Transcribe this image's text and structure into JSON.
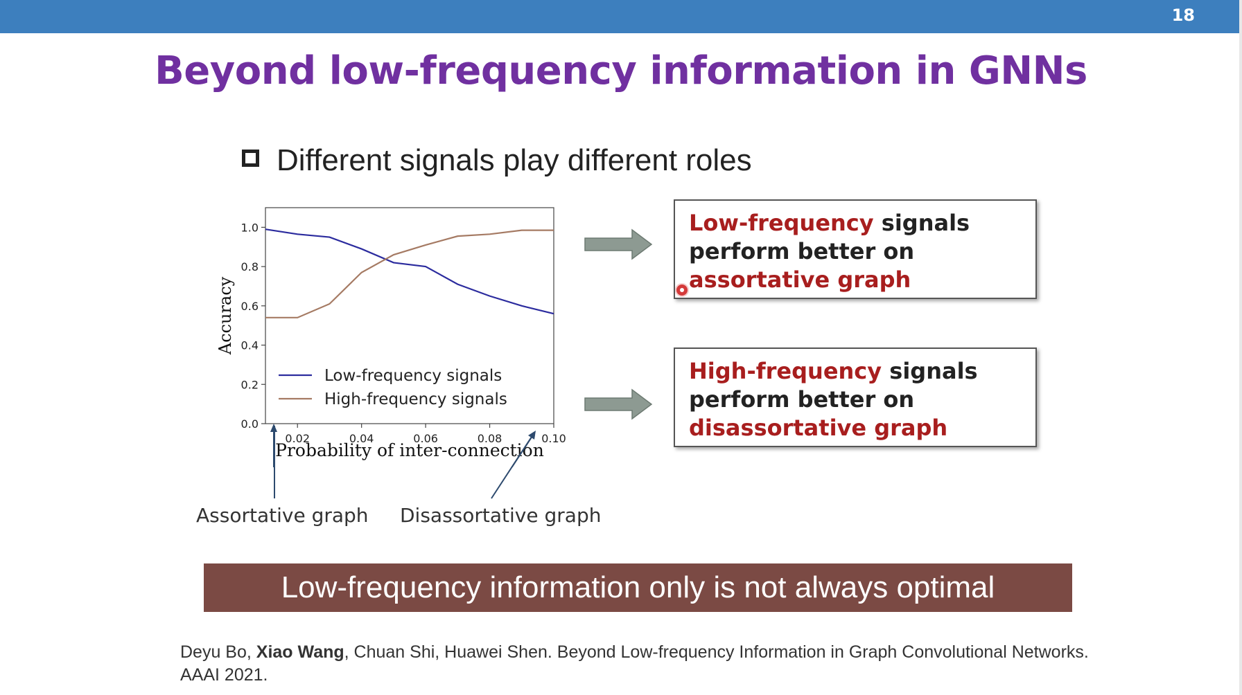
{
  "slide": {
    "page_number": "18",
    "title": "Beyond low-frequency information in GNNs",
    "bullet": "Different signals play different roles"
  },
  "chart_data": {
    "type": "line",
    "xlabel": "Probability of inter-connection",
    "ylabel": "Accuracy",
    "xlim": [
      0.01,
      0.1
    ],
    "ylim": [
      0.0,
      1.1
    ],
    "xticks": [
      "0.02",
      "0.04",
      "0.06",
      "0.08",
      "0.10"
    ],
    "yticks": [
      "0.0",
      "0.2",
      "0.4",
      "0.6",
      "0.8",
      "1.0"
    ],
    "legend_position": "lower-left",
    "grid": false,
    "x": [
      0.01,
      0.02,
      0.03,
      0.04,
      0.05,
      0.06,
      0.07,
      0.08,
      0.09,
      0.1
    ],
    "series": [
      {
        "name": "Low-frequency signals",
        "color": "#2b2b9e",
        "values": [
          0.99,
          0.965,
          0.95,
          0.89,
          0.82,
          0.8,
          0.71,
          0.65,
          0.6,
          0.56
        ]
      },
      {
        "name": "High-frequency signals",
        "color": "#a57a63",
        "values": [
          0.54,
          0.54,
          0.61,
          0.77,
          0.86,
          0.91,
          0.955,
          0.965,
          0.985,
          0.985
        ]
      }
    ]
  },
  "annotations": {
    "assortative": "Assortative graph",
    "disassortative": "Disassortative graph"
  },
  "callouts": {
    "low": {
      "part1": "Low-frequency",
      "part2": " signals perform better on ",
      "part3": "assortative graph"
    },
    "high": {
      "part1": "High-frequency",
      "part2": " signals perform better on ",
      "part3": "disassortative graph"
    }
  },
  "banner": "Low-frequency information only is not always optimal",
  "reference": {
    "author1": "Deyu Bo, ",
    "author2": "Xiao Wang",
    "rest": ", Chuan Shi, Huawei Shen. Beyond Low-frequency Information in Graph Convolutional Networks. AAAI 2021."
  },
  "colors": {
    "topbar": "#3d7fbe",
    "title": "#7030a0",
    "highlight": "#a81e1e",
    "banner": "#7b4a44",
    "arrow": "#8d9a92"
  }
}
